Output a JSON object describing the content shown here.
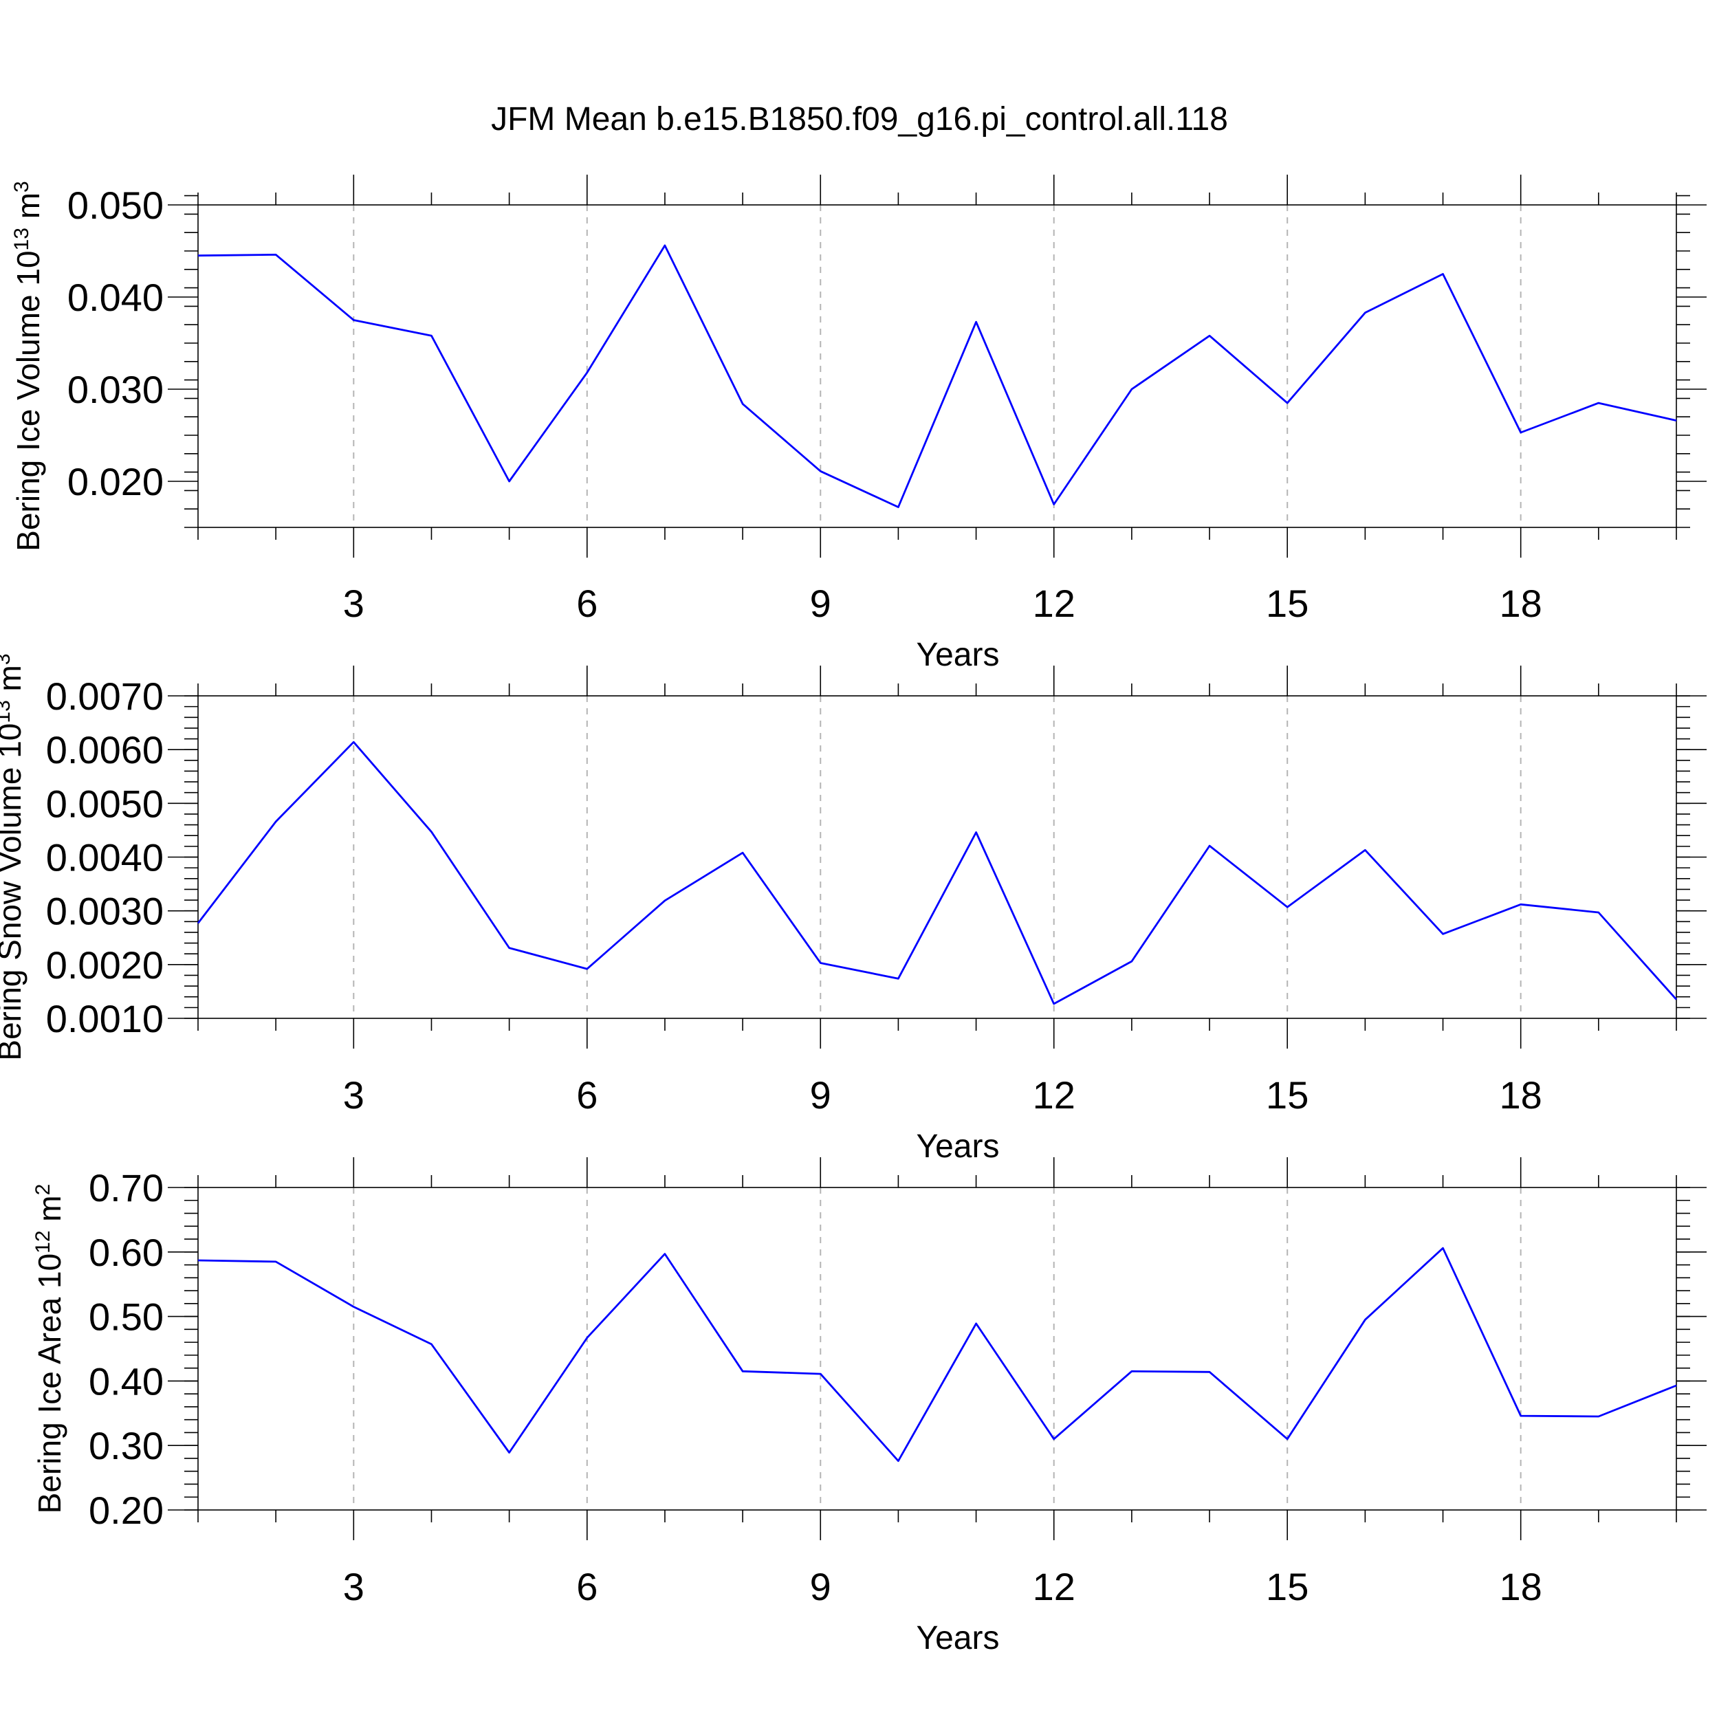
{
  "title": "JFM Mean b.e15.B1850.f09_g16.pi_control.all.118",
  "colors": {
    "line": "#0000ff",
    "frame": "#000000",
    "grid": "#b4b4b4"
  },
  "chart_data": [
    {
      "type": "line",
      "ylabel_main": "Bering Ice Volume 10",
      "ylabel_exp": "13",
      "ylabel_unit": " m",
      "ylabel_unit_exp": "3",
      "xlabel": "Years",
      "xlim": [
        1,
        20
      ],
      "ylim": [
        0.015,
        0.05
      ],
      "yticks": [
        0.02,
        0.03,
        0.04,
        0.05
      ],
      "ytick_labels": [
        "0.020",
        "0.030",
        "0.040",
        "0.050"
      ],
      "yminor_step": 0.002,
      "xticks": [
        3,
        6,
        9,
        12,
        15,
        18
      ],
      "xtick_labels": [
        "3",
        "6",
        "9",
        "12",
        "15",
        "18"
      ],
      "grid": "x-dashed",
      "x": [
        1,
        2,
        3,
        4,
        5,
        6,
        7,
        8,
        9,
        10,
        11,
        12,
        13,
        14,
        15,
        16,
        17,
        18,
        19,
        20
      ],
      "values": [
        0.0445,
        0.0446,
        0.0375,
        0.0358,
        0.02,
        0.0318,
        0.0456,
        0.0284,
        0.0211,
        0.0172,
        0.0373,
        0.0175,
        0.03,
        0.0358,
        0.0285,
        0.0383,
        0.0425,
        0.0253,
        0.0285,
        0.0266
      ]
    },
    {
      "type": "line",
      "ylabel_main": "Bering Snow Volume 10",
      "ylabel_exp": "13",
      "ylabel_unit": " m",
      "ylabel_unit_exp": "3",
      "xlabel": "Years",
      "xlim": [
        1,
        20
      ],
      "ylim": [
        0.001,
        0.007
      ],
      "yticks": [
        0.001,
        0.002,
        0.003,
        0.004,
        0.005,
        0.006,
        0.007
      ],
      "ytick_labels": [
        "0.0010",
        "0.0020",
        "0.0030",
        "0.0040",
        "0.0050",
        "0.0060",
        "0.0070"
      ],
      "yminor_step": 0.0002,
      "xticks": [
        3,
        6,
        9,
        12,
        15,
        18
      ],
      "xtick_labels": [
        "3",
        "6",
        "9",
        "12",
        "15",
        "18"
      ],
      "grid": "x-dashed",
      "x": [
        1,
        2,
        3,
        4,
        5,
        6,
        7,
        8,
        9,
        10,
        11,
        12,
        13,
        14,
        15,
        16,
        17,
        18,
        19,
        20
      ],
      "values": [
        0.00277,
        0.00466,
        0.00614,
        0.00447,
        0.00231,
        0.00192,
        0.00319,
        0.00408,
        0.00203,
        0.00174,
        0.00446,
        0.00127,
        0.00206,
        0.00421,
        0.00307,
        0.00413,
        0.00257,
        0.00312,
        0.00297,
        0.00135
      ]
    },
    {
      "type": "line",
      "ylabel_main": "Bering Ice Area 10",
      "ylabel_exp": "12",
      "ylabel_unit": " m",
      "ylabel_unit_exp": "2",
      "xlabel": "Years",
      "xlim": [
        1,
        20
      ],
      "ylim": [
        0.2,
        0.7
      ],
      "yticks": [
        0.2,
        0.3,
        0.4,
        0.5,
        0.6,
        0.7
      ],
      "ytick_labels": [
        "0.20",
        "0.30",
        "0.40",
        "0.50",
        "0.60",
        "0.70"
      ],
      "yminor_step": 0.02,
      "xticks": [
        3,
        6,
        9,
        12,
        15,
        18
      ],
      "xtick_labels": [
        "3",
        "6",
        "9",
        "12",
        "15",
        "18"
      ],
      "grid": "x-dashed",
      "x": [
        1,
        2,
        3,
        4,
        5,
        6,
        7,
        8,
        9,
        10,
        11,
        12,
        13,
        14,
        15,
        16,
        17,
        18,
        19,
        20
      ],
      "values": [
        0.587,
        0.585,
        0.515,
        0.457,
        0.289,
        0.467,
        0.597,
        0.415,
        0.411,
        0.276,
        0.489,
        0.31,
        0.415,
        0.414,
        0.31,
        0.495,
        0.606,
        0.346,
        0.345,
        0.393
      ]
    }
  ]
}
